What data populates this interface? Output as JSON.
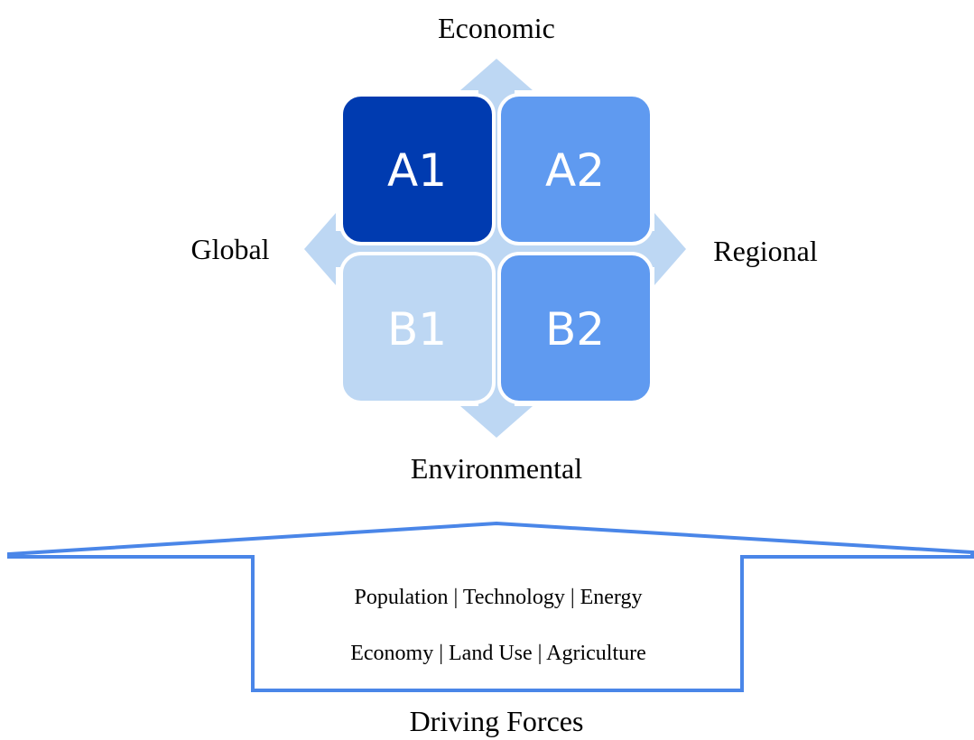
{
  "quadrants": [
    {
      "label": "A1"
    },
    {
      "label": "A2"
    },
    {
      "label": "B1"
    },
    {
      "label": "B2"
    }
  ],
  "axes": {
    "top": "Economic",
    "left": "Global",
    "right": "Regional",
    "bottom": "Environmental"
  },
  "driving_forces": {
    "lines": [
      "Population | Technology | Energy",
      "Economy | Land Use | Agriculture"
    ],
    "title": "Driving Forces"
  }
}
